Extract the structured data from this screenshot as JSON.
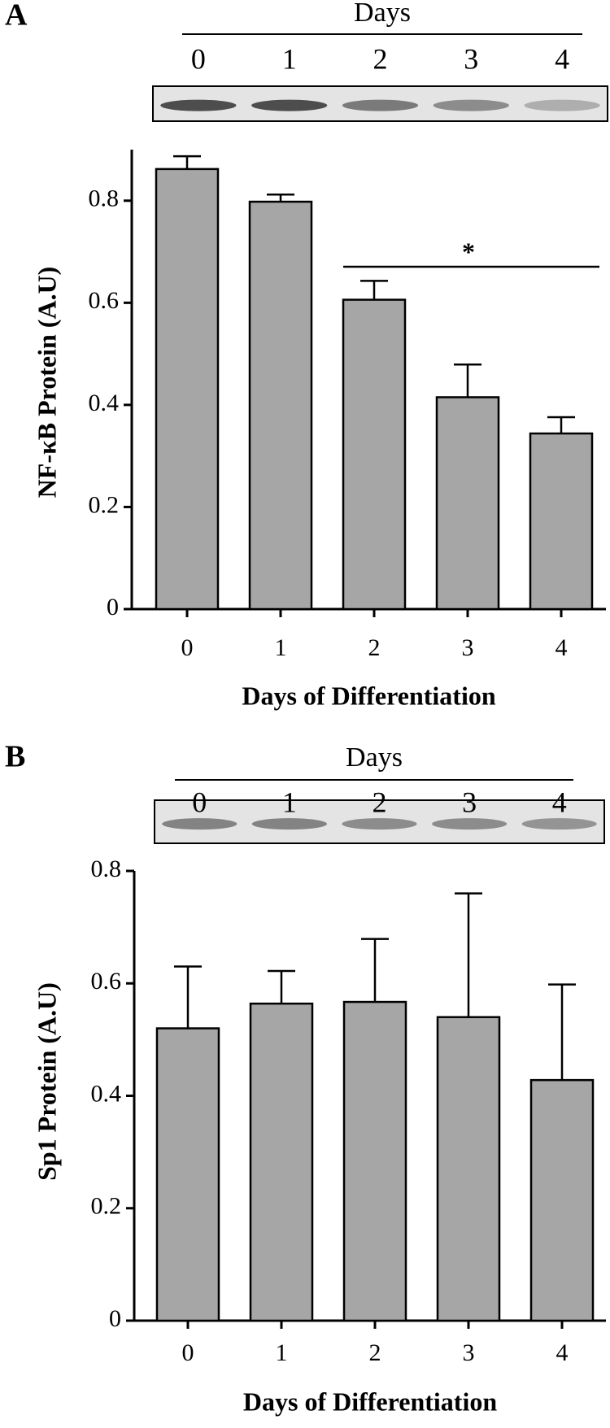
{
  "chart_data": [
    {
      "type": "bar",
      "panel_label": "A",
      "header": "Days",
      "lanes": [
        "0",
        "1",
        "2",
        "3",
        "4"
      ],
      "y_label": "NF-κB Protein (A.U)",
      "x_label": "Days of Differentiation",
      "categories": [
        "0",
        "1",
        "2",
        "3",
        "4"
      ],
      "values": [
        0.862,
        0.798,
        0.606,
        0.415,
        0.344
      ],
      "errors": [
        0.025,
        0.014,
        0.037,
        0.064,
        0.032
      ],
      "color": "#a6a6a6",
      "ylim": [
        0,
        0.9
      ],
      "yticks": [
        0,
        0.2,
        0.4,
        0.6,
        0.8
      ],
      "annotation": "*"
    },
    {
      "type": "bar",
      "panel_label": "B",
      "header": "Days",
      "lanes": [
        "0",
        "1",
        "2",
        "3",
        "4"
      ],
      "y_label": "Sp1 Protein (A.U)",
      "x_label": "Days of Differentiation",
      "categories": [
        "0",
        "1",
        "2",
        "3",
        "4"
      ],
      "values": [
        0.52,
        0.564,
        0.567,
        0.54,
        0.428
      ],
      "errors": [
        0.11,
        0.058,
        0.112,
        0.22,
        0.17
      ],
      "color": "#a6a6a6",
      "ylim": [
        0,
        0.8
      ],
      "yticks": [
        0,
        0.2,
        0.4,
        0.6,
        0.8
      ]
    }
  ]
}
